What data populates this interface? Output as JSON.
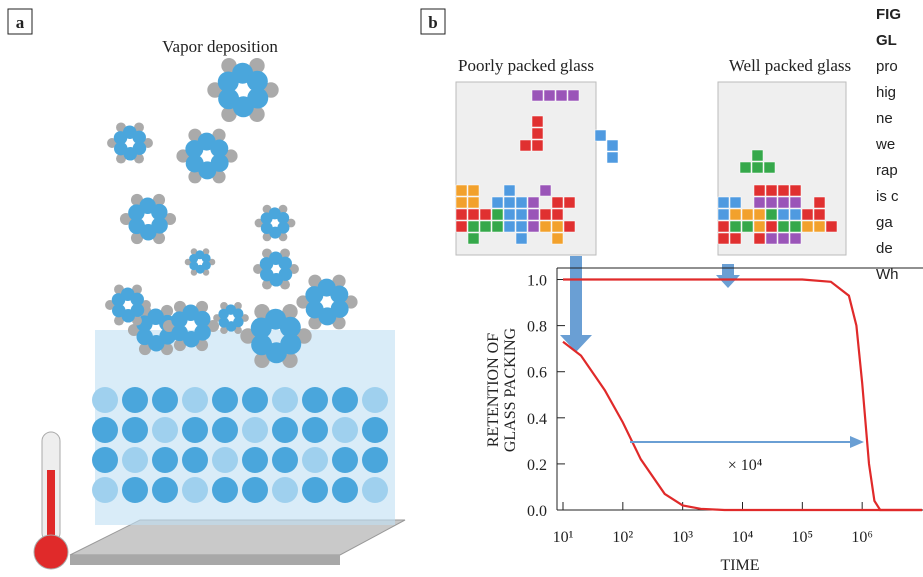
{
  "panel_a": {
    "label": "a",
    "title": "Vapor deposition"
  },
  "panel_b": {
    "label": "b",
    "left_title": "Poorly packed glass",
    "right_title": "Well packed glass"
  },
  "caption": [
    "FIG",
    "GL",
    "pro",
    "hig",
    "ne",
    "we",
    "rap",
    "is c",
    "ga",
    "de",
    "Wh"
  ],
  "chart_data": {
    "type": "line",
    "xlabel": "TIME",
    "ylabel": [
      "RETENTION OF",
      "GLASS PACKING"
    ],
    "log_x": true,
    "xlim": [
      10,
      10000000
    ],
    "ylim": [
      0,
      1.05
    ],
    "xticks": [
      {
        "value": 10,
        "label": "10¹"
      },
      {
        "value": 100,
        "label": "10²"
      },
      {
        "value": 1000,
        "label": "10³"
      },
      {
        "value": 10000,
        "label": "10⁴"
      },
      {
        "value": 100000,
        "label": "10⁵"
      },
      {
        "value": 1000000,
        "label": "10⁶"
      }
    ],
    "yticks": [
      {
        "value": 0,
        "label": "0.0"
      },
      0.2,
      0.4,
      0.6,
      0.8,
      {
        "value": 1,
        "label": "1.0"
      }
    ],
    "annotation": "× 10⁴",
    "series": [
      {
        "color": "#e02a2a",
        "x": [
          10,
          20,
          50,
          100,
          200,
          500,
          1000,
          2000,
          5000,
          10000,
          100000,
          1000000,
          10000000
        ],
        "values": [
          0.73,
          0.67,
          0.52,
          0.38,
          0.22,
          0.07,
          0.02,
          0.005,
          0,
          0,
          0,
          0,
          0
        ]
      },
      {
        "color": "#e02a2a",
        "x": [
          10,
          1000,
          100000,
          300000,
          600000,
          800000,
          1000000,
          1300000,
          1600000,
          2000000,
          10000000
        ],
        "values": [
          1,
          1,
          1,
          0.99,
          0.93,
          0.8,
          0.55,
          0.2,
          0.04,
          0,
          0
        ]
      }
    ]
  }
}
